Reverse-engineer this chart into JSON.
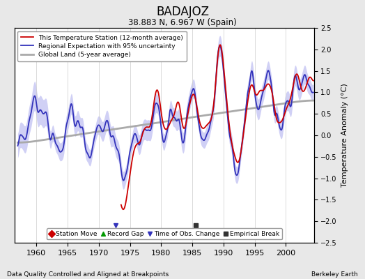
{
  "title": "BADAJOZ",
  "subtitle": "38.883 N, 6.967 W (Spain)",
  "ylabel": "Temperature Anomaly (°C)",
  "xlabel_footer_left": "Data Quality Controlled and Aligned at Breakpoints",
  "xlabel_footer_right": "Berkeley Earth",
  "ylim": [
    -2.5,
    2.5
  ],
  "xlim": [
    1956.5,
    2004.5
  ],
  "xticks": [
    1960,
    1965,
    1970,
    1975,
    1980,
    1985,
    1990,
    1995,
    2000
  ],
  "yticks": [
    -2.5,
    -2.0,
    -1.5,
    -1.0,
    -0.5,
    0.0,
    0.5,
    1.0,
    1.5,
    2.0,
    2.5
  ],
  "legend_items": [
    {
      "label": "This Temperature Station (12-month average)",
      "color": "#cc0000",
      "lw": 1.3
    },
    {
      "label": "Regional Expectation with 95% uncertainty",
      "color": "#3333bb",
      "lw": 1.3
    },
    {
      "label": "Global Land (5-year average)",
      "color": "#aaaaaa",
      "lw": 2.0
    }
  ],
  "marker_legend": [
    {
      "marker": "D",
      "color": "#cc0000",
      "label": "Station Move"
    },
    {
      "marker": "^",
      "color": "#009900",
      "label": "Record Gap"
    },
    {
      "marker": "v",
      "color": "#3333bb",
      "label": "Time of Obs. Change"
    },
    {
      "marker": "s",
      "color": "#333333",
      "label": "Empirical Break"
    }
  ],
  "time_of_obs_changes": [
    1972.75
  ],
  "empirical_breaks": [
    1985.5
  ],
  "background_color": "#e8e8e8",
  "plot_bg_color": "#ffffff",
  "grid_color": "#cccccc",
  "uncertainty_color": "#aaaaee",
  "uncertainty_alpha": 0.55,
  "seed": 17
}
